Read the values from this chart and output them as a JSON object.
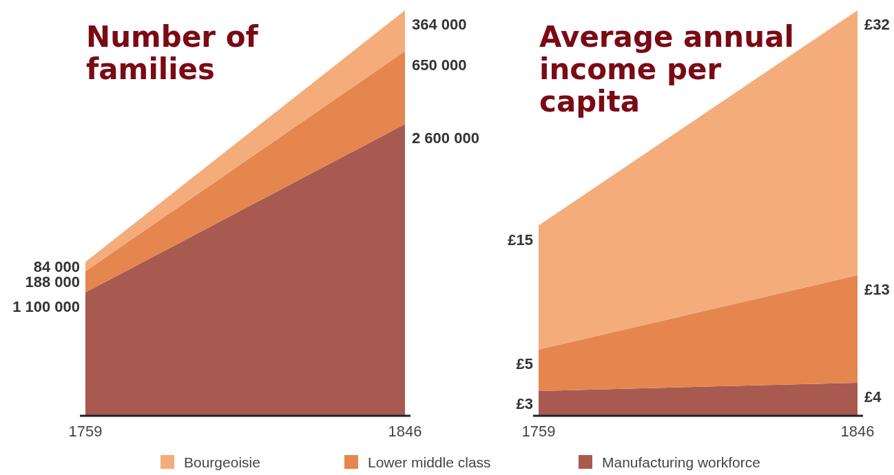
{
  "chart_data": [
    {
      "type": "area",
      "title": "Number of families",
      "categories": [
        "1759",
        "1846"
      ],
      "stacked": true,
      "data_labels": true,
      "legend": "bottom",
      "series": [
        {
          "name": "Manufacturing workforce",
          "color": "#a85a50",
          "values": [
            1100000,
            2600000
          ],
          "value_labels": [
            "1 100 000",
            "2 600 000"
          ]
        },
        {
          "name": "Lower middle class",
          "color": "#e5864f",
          "values": [
            188000,
            650000
          ],
          "value_labels": [
            "188 000",
            "650 000"
          ]
        },
        {
          "name": "Bourgeoisie",
          "color": "#f4ac7b",
          "values": [
            84000,
            364000
          ],
          "value_labels": [
            "84 000",
            "364 000"
          ]
        }
      ]
    },
    {
      "type": "area",
      "title": "Average annual income per capita",
      "categories": [
        "1759",
        "1846"
      ],
      "stacked": true,
      "data_labels": true,
      "series": [
        {
          "color": "#a85a50",
          "values": [
            3,
            4
          ],
          "value_labels": [
            "£3",
            "£4"
          ]
        },
        {
          "color": "#e5864f",
          "values": [
            5,
            13
          ],
          "value_labels": [
            "£5",
            "£13"
          ]
        },
        {
          "color": "#f4ac7b",
          "values": [
            15,
            32
          ],
          "value_labels": [
            "£15",
            "£32"
          ]
        }
      ]
    }
  ]
}
